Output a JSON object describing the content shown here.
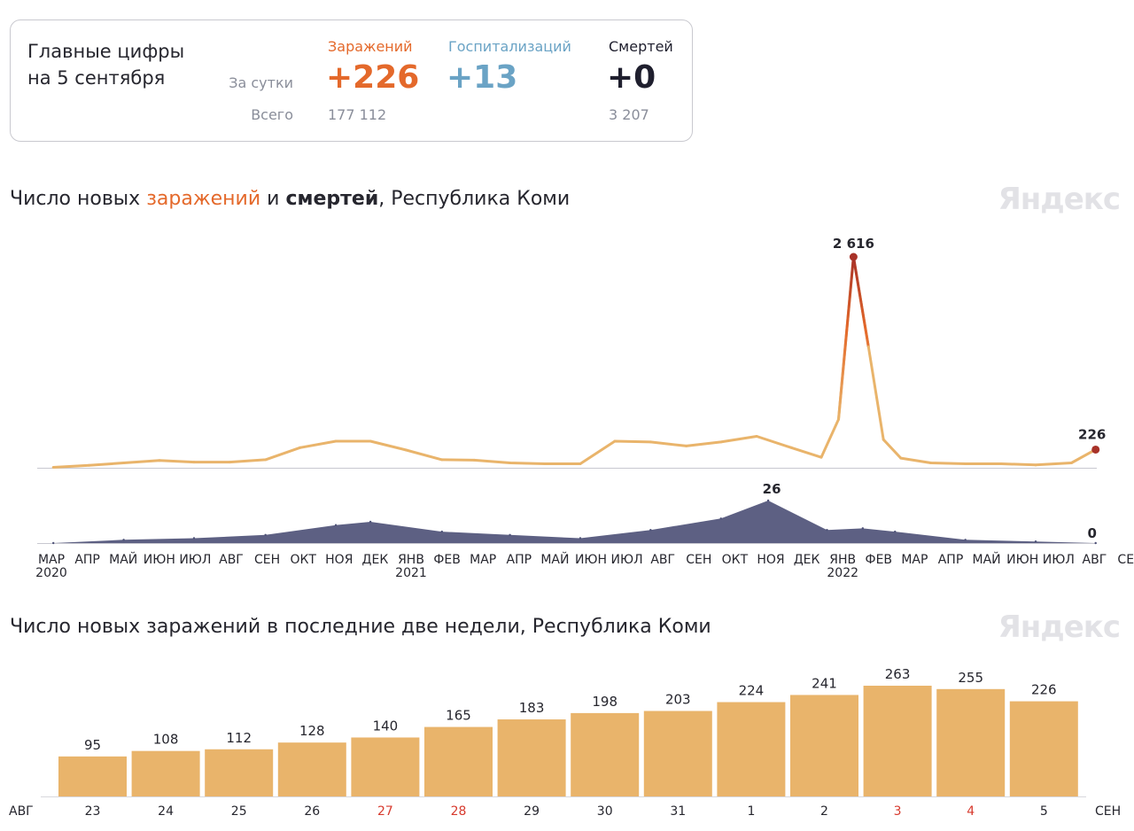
{
  "summary": {
    "title_line1": "Главные цифры",
    "title_line2": "на 5 сентября",
    "row_day": "За сутки",
    "row_total": "Всего",
    "infections": {
      "label": "Заражений",
      "day": "+226",
      "total": "177 112"
    },
    "hospitalizations": {
      "label": "Госпитализаций",
      "day": "+13"
    },
    "deaths": {
      "label": "Смертей",
      "day": "+0",
      "total": "3 207"
    }
  },
  "chart1_title": {
    "part1": "Число новых ",
    "part2": "заражений",
    "part3": " и ",
    "part4": "смертей",
    "part5": ", Республика Коми"
  },
  "chart2_title": "Число новых заражений в последние две недели, Республика Коми",
  "logo": "Яндекс",
  "colors": {
    "infections": "#e4692b",
    "infections_line": "#e9b46b",
    "infections_peak": "#a83228",
    "hospitalizations": "#6aa3c5",
    "deaths_area": "#4f5378",
    "bars": "#e9b46b",
    "weekend": "#d73a2e"
  },
  "chart_data": [
    {
      "type": "line",
      "series": [
        {
          "name": "заражений",
          "note": "daily new infections, approximate readings by month",
          "x": [
            "2020-03-15",
            "2020-04-15",
            "2020-05-15",
            "2020-06-15",
            "2020-07-15",
            "2020-08-15",
            "2020-09-15",
            "2020-10-15",
            "2020-11-15",
            "2020-12-15",
            "2021-01-15",
            "2021-02-15",
            "2021-03-15",
            "2021-04-15",
            "2021-05-15",
            "2021-06-15",
            "2021-07-15",
            "2021-08-15",
            "2021-09-15",
            "2021-10-15",
            "2021-11-15",
            "2021-12-15",
            "2022-01-10",
            "2022-01-25",
            "2022-02-07",
            "2022-02-20",
            "2022-03-05",
            "2022-03-20",
            "2022-04-15",
            "2022-05-15",
            "2022-06-15",
            "2022-07-15",
            "2022-08-15",
            "2022-09-05"
          ],
          "values": [
            5,
            30,
            60,
            90,
            70,
            70,
            100,
            250,
            330,
            330,
            220,
            100,
            95,
            60,
            50,
            50,
            330,
            320,
            270,
            320,
            390,
            250,
            130,
            600,
            2616,
            1500,
            350,
            120,
            60,
            50,
            50,
            35,
            60,
            226
          ]
        },
        {
          "name": "смертей",
          "note": "daily new deaths, approximate",
          "x": [
            "2020-03-15",
            "2020-05-15",
            "2020-07-15",
            "2020-09-15",
            "2020-11-15",
            "2020-12-15",
            "2021-02-15",
            "2021-04-15",
            "2021-06-15",
            "2021-08-15",
            "2021-10-15",
            "2021-11-25",
            "2022-01-15",
            "2022-02-15",
            "2022-03-15",
            "2022-05-15",
            "2022-07-15",
            "2022-09-05"
          ],
          "values": [
            0,
            2,
            3,
            5,
            11,
            13,
            7,
            5,
            3,
            8,
            15,
            26,
            8,
            9,
            7,
            2,
            1,
            0
          ]
        }
      ],
      "peak_labels": {
        "infections_max": "2 616",
        "infections_last": "226",
        "deaths_max": "26",
        "deaths_last": "0"
      },
      "x_tick_labels": [
        "МАР",
        "АПР",
        "МАЙ",
        "ИЮН",
        "ИЮЛ",
        "АВГ",
        "СЕН",
        "ОКТ",
        "НОЯ",
        "ДЕК",
        "ЯНВ",
        "ФЕВ",
        "МАР",
        "АПР",
        "МАЙ",
        "ИЮН",
        "ИЮЛ",
        "АВГ",
        "СЕН",
        "ОКТ",
        "НОЯ",
        "ДЕК",
        "ЯНВ",
        "ФЕВ",
        "МАР",
        "АПР",
        "МАЙ",
        "ИЮН",
        "ИЮЛ",
        "АВГ",
        "СЕН"
      ],
      "year_labels": [
        {
          "tick": 0,
          "label": "2020"
        },
        {
          "tick": 10,
          "label": "2021"
        },
        {
          "tick": 22,
          "label": "2022"
        }
      ]
    },
    {
      "type": "bar",
      "categories": [
        "23",
        "24",
        "25",
        "26",
        "27",
        "28",
        "29",
        "30",
        "31",
        "1",
        "2",
        "3",
        "4",
        "5"
      ],
      "values": [
        95,
        108,
        112,
        128,
        140,
        165,
        183,
        198,
        203,
        224,
        241,
        263,
        255,
        226
      ],
      "weekend": [
        false,
        false,
        false,
        false,
        true,
        true,
        false,
        false,
        false,
        false,
        false,
        true,
        true,
        false
      ],
      "month_left": "АВГ",
      "month_right": "СЕН"
    }
  ]
}
